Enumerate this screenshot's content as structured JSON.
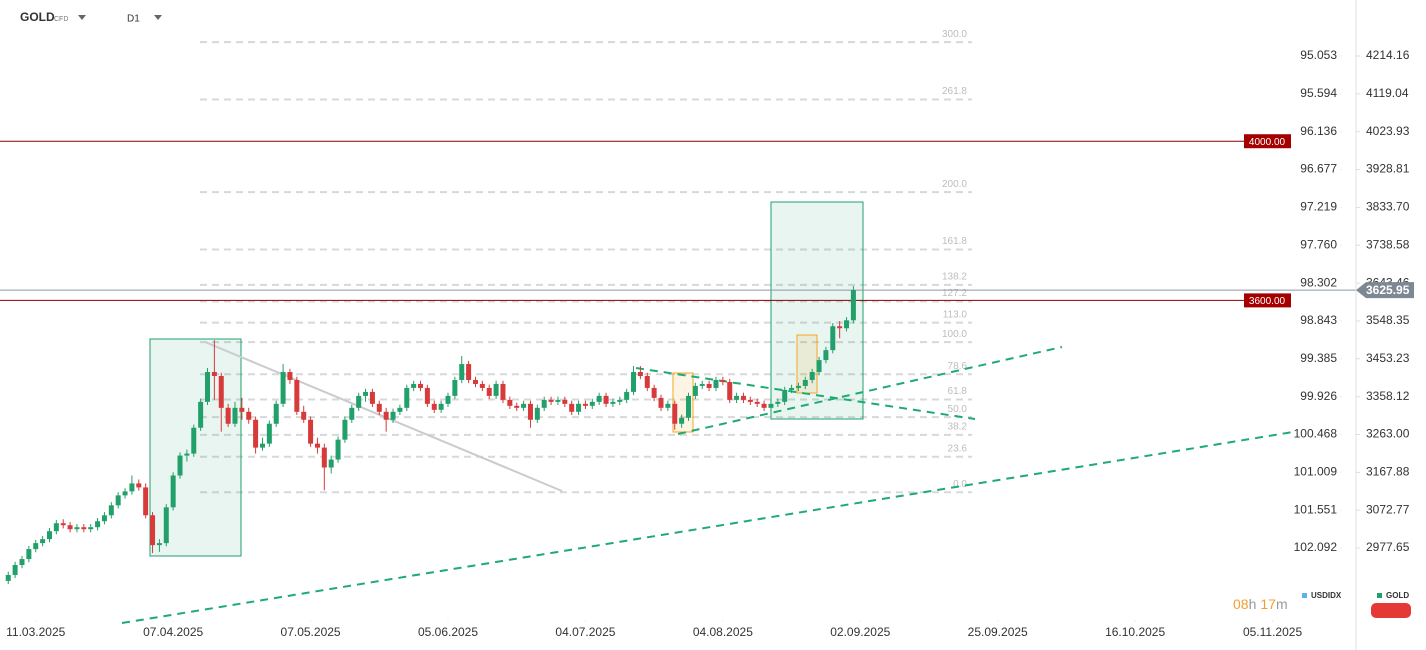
{
  "chart_data": {
    "type": "candlestick",
    "symbol": "GOLD",
    "instrument_type": "CFD",
    "timeframe": "D1",
    "compare_symbol": "USDIDX",
    "countdown": [
      "08",
      "h",
      "17",
      "m"
    ],
    "up_color": "#22a06b",
    "down_color": "#d63a3a",
    "xlim": [
      -1.2,
      196
    ],
    "xticks": [
      {
        "value": 4,
        "label": "11.03.2025"
      },
      {
        "value": 24,
        "label": "07.04.2025"
      },
      {
        "value": 44,
        "label": "07.05.2025"
      },
      {
        "value": 64,
        "label": "05.06.2025"
      },
      {
        "value": 84,
        "label": "04.07.2025"
      },
      {
        "value": 104,
        "label": "04.08.2025"
      },
      {
        "value": 124,
        "label": "02.09.2025"
      },
      {
        "value": 144,
        "label": "25.09.2025"
      },
      {
        "value": 164,
        "label": "16.10.2025"
      },
      {
        "value": 184,
        "label": "05.11.2025"
      }
    ],
    "ylim": [
      2796.8,
      4354.9
    ],
    "yticks": [
      4214.16,
      4119.04,
      4023.93,
      3928.81,
      {
        "value": 3833.7,
        "label": "3833.70"
      },
      3738.58,
      3643.46,
      3548.35,
      3453.23,
      3358.12,
      {
        "value": 3263,
        "label": "3263.00"
      },
      3167.88,
      3072.77,
      2977.65
    ],
    "y2lim": [
      103.122,
      94.252
    ],
    "y2ticks": [
      95.053,
      95.594,
      96.136,
      96.677,
      97.219,
      {
        "value": 97.76,
        "label": "97.760"
      },
      98.302,
      98.843,
      99.385,
      99.926,
      100.468,
      101.009,
      101.551,
      102.092
    ],
    "levels": [
      {
        "value": 4000,
        "label": "4000.00"
      },
      {
        "value": 3600,
        "label": "3600.00"
      }
    ],
    "last_price": 3625.95,
    "fibonacci": {
      "low": 3118,
      "high": 3495,
      "levels": [
        {
          "value": 300,
          "label": "300.0"
        },
        261.8,
        {
          "value": 200,
          "label": "200.0"
        },
        161.8,
        138.2,
        127.2,
        {
          "value": 113,
          "label": "113.0"
        },
        {
          "value": 100,
          "label": "100.0"
        },
        78.6,
        61.8,
        {
          "value": 50,
          "label": "50.0"
        },
        38.2,
        23.6,
        {
          "value": 0,
          "label": "0.0"
        }
      ]
    },
    "ohlc": [
      [
        2895,
        2918,
        2887,
        2910
      ],
      [
        2910,
        2943,
        2902,
        2935
      ],
      [
        2935,
        2958,
        2927,
        2950
      ],
      [
        2950,
        2983,
        2942,
        2975
      ],
      [
        2975,
        2998,
        2967,
        2990
      ],
      [
        2990,
        3008,
        2982,
        3000
      ],
      [
        3000,
        3028,
        2992,
        3020
      ],
      [
        3020,
        3048,
        3012,
        3040
      ],
      [
        3040,
        3050,
        3027,
        3035
      ],
      [
        3035,
        3043,
        3017,
        3025
      ],
      [
        3025,
        3038,
        3017,
        3030
      ],
      [
        3030,
        3038,
        3017,
        3025
      ],
      [
        3025,
        3038,
        3017,
        3030
      ],
      [
        3030,
        3053,
        3022,
        3045
      ],
      [
        3045,
        3068,
        3037,
        3060
      ],
      [
        3060,
        3093,
        3052,
        3085
      ],
      [
        3085,
        3118,
        3077,
        3110
      ],
      [
        3110,
        3128,
        3102,
        3120
      ],
      [
        3120,
        3160,
        3112,
        3140
      ],
      [
        3140,
        3150,
        3122,
        3130
      ],
      [
        3130,
        3140,
        3052,
        3060
      ],
      [
        3060,
        3068,
        2965,
        2985
      ],
      [
        2985,
        3000,
        2968,
        2990
      ],
      [
        2990,
        3088,
        2982,
        3080
      ],
      [
        3080,
        3168,
        3072,
        3160
      ],
      [
        3160,
        3218,
        3152,
        3210
      ],
      [
        3210,
        3225,
        3195,
        3215
      ],
      [
        3215,
        3288,
        3207,
        3280
      ],
      [
        3280,
        3353,
        3272,
        3345
      ],
      [
        3345,
        3430,
        3337,
        3420
      ],
      [
        3420,
        3500,
        3350,
        3410
      ],
      [
        3410,
        3418,
        3270,
        3330
      ],
      [
        3330,
        3340,
        3282,
        3290
      ],
      [
        3290,
        3345,
        3282,
        3330
      ],
      [
        3330,
        3355,
        3300,
        3320
      ],
      [
        3320,
        3330,
        3290,
        3300
      ],
      [
        3300,
        3308,
        3215,
        3230
      ],
      [
        3230,
        3255,
        3222,
        3240
      ],
      [
        3240,
        3298,
        3232,
        3290
      ],
      [
        3290,
        3348,
        3282,
        3340
      ],
      [
        3340,
        3440,
        3332,
        3420
      ],
      [
        3420,
        3428,
        3390,
        3400
      ],
      [
        3400,
        3408,
        3312,
        3320
      ],
      [
        3320,
        3335,
        3292,
        3300
      ],
      [
        3300,
        3308,
        3232,
        3240
      ],
      [
        3240,
        3255,
        3215,
        3230
      ],
      [
        3230,
        3240,
        3123,
        3180
      ],
      [
        3180,
        3210,
        3165,
        3200
      ],
      [
        3200,
        3258,
        3192,
        3250
      ],
      [
        3250,
        3308,
        3242,
        3300
      ],
      [
        3300,
        3338,
        3292,
        3330
      ],
      [
        3330,
        3368,
        3322,
        3360
      ],
      [
        3360,
        3378,
        3345,
        3370
      ],
      [
        3370,
        3378,
        3332,
        3340
      ],
      [
        3340,
        3348,
        3312,
        3320
      ],
      [
        3320,
        3330,
        3270,
        3300
      ],
      [
        3300,
        3328,
        3292,
        3320
      ],
      [
        3320,
        3338,
        3312,
        3330
      ],
      [
        3330,
        3388,
        3322,
        3380
      ],
      [
        3380,
        3398,
        3372,
        3390
      ],
      [
        3390,
        3398,
        3372,
        3380
      ],
      [
        3380,
        3388,
        3332,
        3340
      ],
      [
        3340,
        3348,
        3317,
        3325
      ],
      [
        3325,
        3348,
        3317,
        3340
      ],
      [
        3340,
        3368,
        3332,
        3360
      ],
      [
        3360,
        3408,
        3352,
        3400
      ],
      [
        3400,
        3460,
        3392,
        3440
      ],
      [
        3440,
        3448,
        3392,
        3400
      ],
      [
        3400,
        3408,
        3382,
        3390
      ],
      [
        3390,
        3398,
        3372,
        3380
      ],
      [
        3380,
        3388,
        3352,
        3360
      ],
      [
        3360,
        3398,
        3352,
        3390
      ],
      [
        3390,
        3398,
        3342,
        3350
      ],
      [
        3350,
        3358,
        3327,
        3335
      ],
      [
        3335,
        3343,
        3322,
        3330
      ],
      [
        3330,
        3348,
        3322,
        3340
      ],
      [
        3340,
        3348,
        3280,
        3300
      ],
      [
        3300,
        3338,
        3292,
        3330
      ],
      [
        3330,
        3358,
        3322,
        3350
      ],
      [
        3350,
        3358,
        3337,
        3345
      ],
      [
        3345,
        3358,
        3337,
        3350
      ],
      [
        3350,
        3358,
        3332,
        3340
      ],
      [
        3340,
        3348,
        3312,
        3320
      ],
      [
        3320,
        3348,
        3312,
        3340
      ],
      [
        3340,
        3348,
        3327,
        3335
      ],
      [
        3335,
        3353,
        3327,
        3345
      ],
      [
        3345,
        3368,
        3337,
        3360
      ],
      [
        3360,
        3368,
        3332,
        3340
      ],
      [
        3340,
        3353,
        3332,
        3345
      ],
      [
        3345,
        3358,
        3337,
        3350
      ],
      [
        3350,
        3378,
        3342,
        3370
      ],
      [
        3370,
        3435,
        3362,
        3420
      ],
      [
        3420,
        3435,
        3402,
        3410
      ],
      [
        3410,
        3418,
        3372,
        3380
      ],
      [
        3380,
        3388,
        3347,
        3355
      ],
      [
        3355,
        3363,
        3322,
        3330
      ],
      [
        3330,
        3348,
        3322,
        3340
      ],
      [
        3340,
        3348,
        3275,
        3290
      ],
      [
        3290,
        3313,
        3280,
        3305
      ],
      [
        3305,
        3368,
        3297,
        3360
      ],
      [
        3360,
        3393,
        3352,
        3385
      ],
      [
        3385,
        3398,
        3377,
        3390
      ],
      [
        3390,
        3398,
        3372,
        3380
      ],
      [
        3380,
        3408,
        3372,
        3400
      ],
      [
        3400,
        3408,
        3387,
        3395
      ],
      [
        3395,
        3403,
        3342,
        3350
      ],
      [
        3350,
        3368,
        3342,
        3360
      ],
      [
        3360,
        3368,
        3342,
        3350
      ],
      [
        3350,
        3358,
        3337,
        3345
      ],
      [
        3345,
        3353,
        3332,
        3340
      ],
      [
        3340,
        3348,
        3322,
        3330
      ],
      [
        3330,
        3348,
        3322,
        3340
      ],
      [
        3340,
        3353,
        3332,
        3345
      ],
      [
        3345,
        3383,
        3337,
        3375
      ],
      [
        3375,
        3388,
        3367,
        3380
      ],
      [
        3380,
        3393,
        3372,
        3385
      ],
      [
        3385,
        3408,
        3377,
        3400
      ],
      [
        3400,
        3428,
        3392,
        3420
      ],
      [
        3420,
        3458,
        3412,
        3450
      ],
      [
        3450,
        3483,
        3442,
        3475
      ],
      [
        3475,
        3543,
        3467,
        3535
      ],
      [
        3535,
        3548,
        3505,
        3530
      ],
      [
        3530,
        3558,
        3522,
        3550
      ],
      [
        3550,
        3636,
        3542,
        3626
      ]
    ]
  }
}
